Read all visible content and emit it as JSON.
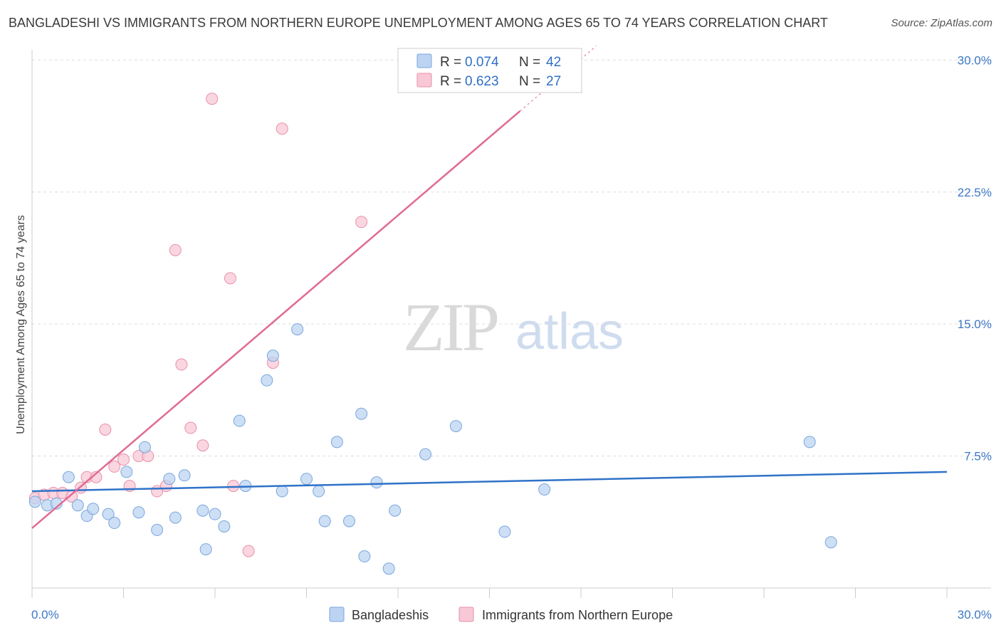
{
  "title": "BANGLADESHI VS IMMIGRANTS FROM NORTHERN EUROPE UNEMPLOYMENT AMONG AGES 65 TO 74 YEARS CORRELATION CHART",
  "source": "Source: ZipAtlas.com",
  "watermark": {
    "zip": "ZIP",
    "atlas": "atlas"
  },
  "colors": {
    "blue_fill": "#bcd4f2",
    "blue_stroke": "#7aa6dc",
    "blue_line": "#2f72c8",
    "pink_fill": "#f8c8d6",
    "pink_stroke": "#e890aa",
    "pink_line": "#e06a92",
    "tick_text": "#3d78c6",
    "grid": "#dddddd"
  },
  "chart_data": {
    "type": "scatter",
    "xlabel": "",
    "ylabel": "Unemployment Among Ages 65 to 74 years",
    "xlim": [
      0,
      30
    ],
    "ylim": [
      0,
      30.5
    ],
    "x_tick_labels": [
      "0.0%",
      "30.0%"
    ],
    "y_ticks": [
      7.5,
      15.0,
      22.5,
      30.0
    ],
    "y_tick_labels": [
      "7.5%",
      "15.0%",
      "22.5%",
      "30.0%"
    ],
    "grid": true,
    "legend_position": "top-center",
    "legend": [
      {
        "r_label": "R =",
        "r_value": "0.074",
        "n_label": "N =",
        "n_value": "42"
      },
      {
        "r_label": "R =",
        "r_value": "0.623",
        "n_label": "N =",
        "n_value": "27"
      }
    ],
    "bottom_legend": [
      "Bangladeshis",
      "Immigrants from Northern Europe"
    ],
    "series": [
      {
        "name": "Bangladeshis",
        "points": [
          [
            0.1,
            4.9
          ],
          [
            0.5,
            4.7
          ],
          [
            0.8,
            4.8
          ],
          [
            1.2,
            6.3
          ],
          [
            1.5,
            4.7
          ],
          [
            1.8,
            4.1
          ],
          [
            2.0,
            4.5
          ],
          [
            2.5,
            4.2
          ],
          [
            2.7,
            3.7
          ],
          [
            3.1,
            6.6
          ],
          [
            3.5,
            4.3
          ],
          [
            3.7,
            8.0
          ],
          [
            4.1,
            3.3
          ],
          [
            4.5,
            6.2
          ],
          [
            4.7,
            4.0
          ],
          [
            5.0,
            6.4
          ],
          [
            5.6,
            4.4
          ],
          [
            5.7,
            2.2
          ],
          [
            6.0,
            4.2
          ],
          [
            6.3,
            3.5
          ],
          [
            6.8,
            9.5
          ],
          [
            7.0,
            5.8
          ],
          [
            7.7,
            11.8
          ],
          [
            7.9,
            13.2
          ],
          [
            8.2,
            5.5
          ],
          [
            8.7,
            14.7
          ],
          [
            9.0,
            6.2
          ],
          [
            9.4,
            5.5
          ],
          [
            9.6,
            3.8
          ],
          [
            10.0,
            8.3
          ],
          [
            10.4,
            3.8
          ],
          [
            10.8,
            9.9
          ],
          [
            10.9,
            1.8
          ],
          [
            11.3,
            6.0
          ],
          [
            11.7,
            1.1
          ],
          [
            11.9,
            4.4
          ],
          [
            12.9,
            7.6
          ],
          [
            13.9,
            9.2
          ],
          [
            15.5,
            3.2
          ],
          [
            16.8,
            5.6
          ],
          [
            25.5,
            8.3
          ],
          [
            26.2,
            2.6
          ]
        ],
        "trend": {
          "x": [
            0,
            30
          ],
          "y": [
            5.5,
            6.6
          ]
        }
      },
      {
        "name": "Immigrants from Northern Europe",
        "points": [
          [
            0.1,
            5.1
          ],
          [
            0.4,
            5.3
          ],
          [
            0.7,
            5.4
          ],
          [
            1.0,
            5.4
          ],
          [
            1.3,
            5.2
          ],
          [
            1.6,
            5.7
          ],
          [
            1.8,
            6.3
          ],
          [
            2.1,
            6.3
          ],
          [
            2.4,
            9.0
          ],
          [
            2.7,
            6.9
          ],
          [
            3.0,
            7.3
          ],
          [
            3.2,
            5.8
          ],
          [
            3.5,
            7.5
          ],
          [
            3.8,
            7.5
          ],
          [
            4.1,
            5.5
          ],
          [
            4.4,
            5.8
          ],
          [
            4.7,
            19.2
          ],
          [
            4.9,
            12.7
          ],
          [
            5.2,
            9.1
          ],
          [
            5.6,
            8.1
          ],
          [
            5.9,
            27.8
          ],
          [
            6.5,
            17.6
          ],
          [
            6.6,
            5.8
          ],
          [
            7.1,
            2.1
          ],
          [
            7.9,
            12.8
          ],
          [
            8.2,
            26.1
          ],
          [
            10.8,
            20.8
          ]
        ],
        "trend": {
          "x": [
            0,
            16
          ],
          "y": [
            3.4,
            27.1
          ]
        },
        "trend_dashed": {
          "x": [
            16,
            18.5
          ],
          "y": [
            27.1,
            30.8
          ]
        }
      }
    ]
  }
}
